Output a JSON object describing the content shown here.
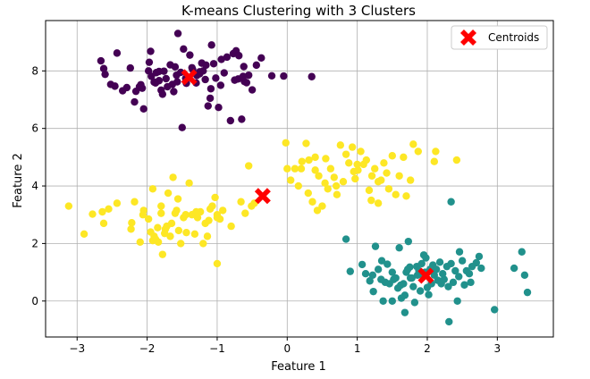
{
  "chart_data": {
    "type": "scatter",
    "title": "K-means Clustering with 3 Clusters",
    "xlabel": "Feature 1",
    "ylabel": "Feature 2",
    "xlim": [
      -3.45,
      3.8
    ],
    "ylim": [
      -1.25,
      9.75
    ],
    "xticks": [
      -3,
      -2,
      -1,
      0,
      1,
      2,
      3
    ],
    "yticks": [
      0,
      2,
      4,
      6,
      8
    ],
    "grid": true,
    "legend_position": "top-right",
    "legend_entries": [
      "Centroids"
    ],
    "colors": {
      "cluster_a": "#440154",
      "cluster_b": "#fde725",
      "cluster_c": "#21918c",
      "centroid": "#ff0000"
    },
    "series": [
      {
        "color_key": "cluster_a",
        "x": [
          -2.66,
          -2.62,
          -2.52,
          -2.46,
          -2.43,
          -2.35,
          -2.18,
          -2.24,
          -2.11,
          -2.07,
          -2.05,
          -1.98,
          -1.94,
          -1.88,
          -1.83,
          -1.8,
          -1.78,
          -1.73,
          -1.67,
          -1.64,
          -1.62,
          -1.58,
          -1.56,
          -1.5,
          -1.48,
          -1.44,
          -1.39,
          -1.35,
          -1.3,
          -1.25,
          -1.22,
          -1.17,
          -1.13,
          -1.1,
          -1.08,
          -1.05,
          -1.02,
          -0.98,
          -0.94,
          -0.9,
          -0.86,
          -0.81,
          -0.77,
          -0.73,
          -0.69,
          -0.65,
          -0.62,
          -0.58,
          -0.55,
          -0.5,
          -0.44,
          -0.37,
          -0.22,
          -0.05,
          0.35,
          -0.7,
          -0.61,
          -1.52,
          -1.6,
          -1.95,
          -2.09,
          -1.83,
          -1.29,
          -1.87,
          -1.16,
          -0.75,
          -1.71,
          -1.2,
          -1.57,
          -1.97,
          -2.6,
          -2.29,
          -1.76,
          -1.36,
          -0.95,
          -1.09,
          -0.63,
          -1.45,
          -2.16,
          -1.9,
          -1.25
        ],
        "y": [
          8.35,
          8.08,
          7.53,
          7.47,
          8.62,
          7.31,
          6.92,
          8.1,
          7.45,
          7.4,
          6.68,
          8.0,
          7.81,
          7.58,
          7.98,
          7.33,
          7.19,
          7.73,
          8.21,
          7.53,
          7.28,
          7.85,
          9.3,
          6.03,
          8.76,
          7.57,
          8.55,
          8.05,
          7.58,
          7.9,
          8.27,
          7.7,
          6.78,
          7.05,
          8.9,
          8.25,
          7.75,
          6.73,
          8.4,
          7.93,
          8.48,
          6.27,
          8.6,
          8.7,
          8.53,
          6.32,
          8.15,
          7.59,
          7.85,
          7.34,
          8.2,
          8.45,
          7.83,
          7.82,
          7.8,
          7.72,
          7.63,
          7.95,
          8.14,
          8.68,
          7.52,
          7.66,
          7.84,
          7.94,
          8.2,
          7.68,
          7.45,
          8.0,
          7.62,
          8.3,
          7.88,
          7.42,
          7.99,
          8.11,
          7.5,
          7.38,
          7.81,
          7.74,
          7.29,
          7.61,
          7.97
        ]
      },
      {
        "color_key": "cluster_b",
        "x": [
          -3.12,
          -2.9,
          -2.78,
          -2.62,
          -2.55,
          -2.43,
          -2.22,
          -2.18,
          -2.1,
          -2.06,
          -1.98,
          -1.95,
          -1.92,
          -1.88,
          -1.84,
          -1.8,
          -1.78,
          -1.74,
          -1.7,
          -1.67,
          -1.63,
          -1.6,
          -1.56,
          -1.52,
          -1.48,
          -1.44,
          -1.4,
          -1.36,
          -1.32,
          -1.28,
          -1.24,
          -1.2,
          -1.17,
          -1.14,
          -1.1,
          -1.07,
          -1.03,
          -1.0,
          -0.96,
          -0.92,
          -0.8,
          -0.66,
          -0.6,
          -0.55,
          -0.51,
          -0.47,
          -1.72,
          -1.58,
          -1.92,
          -1.65,
          -1.8,
          -2.05,
          -1.3,
          -1.0,
          -1.12,
          -1.45,
          -1.85,
          -1.55,
          -1.0,
          -1.75,
          -1.9,
          -2.23,
          -2.64,
          -0.02,
          0.0,
          0.05,
          0.11,
          0.16,
          0.21,
          0.27,
          0.31,
          0.36,
          0.4,
          0.43,
          0.45,
          0.5,
          0.54,
          0.58,
          0.62,
          0.67,
          0.71,
          0.76,
          0.8,
          0.84,
          0.88,
          0.93,
          0.97,
          1.01,
          1.05,
          1.09,
          1.13,
          1.17,
          1.21,
          1.25,
          1.3,
          1.34,
          1.38,
          1.42,
          1.45,
          1.5,
          1.55,
          1.6,
          1.66,
          1.7,
          1.76,
          1.8,
          1.87,
          2.1,
          2.12,
          2.42,
          1.2,
          0.3,
          0.7,
          0.95,
          1.3,
          0.2,
          0.55,
          1.0,
          0.4
        ],
        "y": [
          3.3,
          2.33,
          3.02,
          2.7,
          3.2,
          3.4,
          2.72,
          3.45,
          2.05,
          3.0,
          2.85,
          2.4,
          3.9,
          2.15,
          2.05,
          3.3,
          1.62,
          2.5,
          3.75,
          2.25,
          4.3,
          3.05,
          3.55,
          2.0,
          2.9,
          2.38,
          4.1,
          3.0,
          2.33,
          2.9,
          3.1,
          2.0,
          2.7,
          2.25,
          3.2,
          3.3,
          3.6,
          3.0,
          2.85,
          3.15,
          2.6,
          3.45,
          3.05,
          4.7,
          3.3,
          3.4,
          2.6,
          3.15,
          2.1,
          2.7,
          3.05,
          3.15,
          3.1,
          2.9,
          2.8,
          3.0,
          2.55,
          2.45,
          1.3,
          2.35,
          2.25,
          2.5,
          3.1,
          5.5,
          4.6,
          4.2,
          4.6,
          4.0,
          4.85,
          5.48,
          4.9,
          3.45,
          5.0,
          3.15,
          4.35,
          3.3,
          4.1,
          3.9,
          4.6,
          4.3,
          3.7,
          5.42,
          4.15,
          5.1,
          4.8,
          5.35,
          4.25,
          4.55,
          5.2,
          4.75,
          4.9,
          3.85,
          4.35,
          4.6,
          3.4,
          4.2,
          4.8,
          4.45,
          3.9,
          5.05,
          3.7,
          4.35,
          5.0,
          3.65,
          4.2,
          5.45,
          5.2,
          4.85,
          5.2,
          4.9,
          3.5,
          3.75,
          4.0,
          4.5,
          4.15,
          4.6,
          4.95,
          4.75,
          4.55
        ]
      },
      {
        "color_key": "cluster_c",
        "x": [
          0.84,
          0.9,
          1.07,
          1.12,
          1.18,
          1.23,
          1.26,
          1.3,
          1.35,
          1.37,
          1.4,
          1.43,
          1.46,
          1.5,
          1.52,
          1.55,
          1.58,
          1.6,
          1.63,
          1.66,
          1.68,
          1.7,
          1.73,
          1.75,
          1.78,
          1.8,
          1.82,
          1.85,
          1.88,
          1.9,
          1.93,
          1.95,
          1.97,
          2.0,
          2.02,
          2.04,
          2.06,
          2.08,
          2.1,
          2.13,
          2.15,
          2.18,
          2.2,
          2.24,
          2.28,
          2.31,
          2.34,
          2.37,
          2.4,
          2.43,
          2.46,
          2.5,
          2.53,
          2.56,
          2.6,
          2.64,
          2.7,
          2.74,
          2.77,
          2.96,
          3.24,
          3.35,
          3.39,
          3.43,
          2.34,
          2.3,
          1.68,
          1.72,
          1.86,
          1.98,
          2.45,
          1.5,
          1.22,
          1.34,
          2.62,
          2.08,
          1.76,
          2.22,
          1.62,
          1.92
        ],
        "y": [
          2.15,
          1.03,
          1.27,
          0.95,
          0.7,
          0.33,
          1.9,
          1.1,
          1.4,
          0.0,
          0.65,
          1.28,
          0.6,
          0.0,
          0.75,
          0.8,
          0.45,
          1.85,
          0.1,
          0.6,
          -0.4,
          1.0,
          2.07,
          1.18,
          0.8,
          0.5,
          -0.05,
          1.2,
          1.06,
          0.35,
          0.92,
          1.6,
          1.0,
          0.47,
          0.22,
          1.1,
          0.6,
          1.25,
          0.9,
          1.1,
          0.72,
          1.35,
          0.6,
          0.75,
          1.2,
          -0.72,
          3.45,
          0.65,
          1.05,
          0.0,
          1.71,
          1.4,
          0.56,
          1.05,
          0.95,
          1.2,
          1.33,
          1.55,
          1.14,
          -0.3,
          1.14,
          1.71,
          0.9,
          0.3,
          1.3,
          0.5,
          0.2,
          1.1,
          0.9,
          1.5,
          0.85,
          1.0,
          0.9,
          0.75,
          0.65,
          1.15,
          0.8,
          0.95,
          0.55,
          1.3
        ]
      }
    ],
    "centroids": {
      "name": "Centroids",
      "x": [
        -1.4,
        -0.35,
        1.98
      ],
      "y": [
        7.78,
        3.65,
        0.88
      ]
    }
  }
}
